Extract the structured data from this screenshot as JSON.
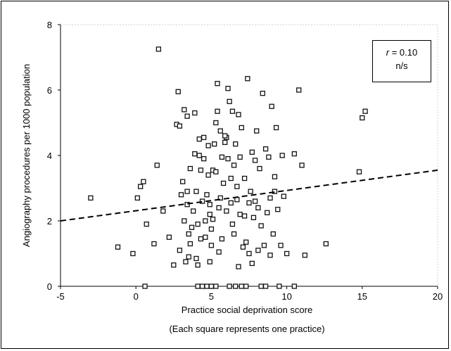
{
  "chart_data": {
    "type": "scatter",
    "xlabel": "Practice social deprivation score",
    "xlabel_note": "(Each square represents one practice)",
    "ylabel": "Angiography procedures per 1000 population",
    "xlim": [
      -5,
      20
    ],
    "ylim": [
      0,
      8
    ],
    "xticks": [
      "-5",
      "0",
      "5",
      "10",
      "15",
      "20"
    ],
    "yticks": [
      "0",
      "2",
      "4",
      "6",
      "8"
    ],
    "grid": false,
    "annotation": {
      "r_label": "r",
      "r_value": "= 0.10",
      "significance": "n/s"
    },
    "trend_line": {
      "style": "dashed",
      "x": [
        -5,
        20
      ],
      "y": [
        2.0,
        3.55
      ]
    },
    "points": [
      {
        "x": -3.0,
        "y": 2.7
      },
      {
        "x": -1.2,
        "y": 1.2
      },
      {
        "x": -0.2,
        "y": 1.0
      },
      {
        "x": 0.1,
        "y": 2.7
      },
      {
        "x": 0.3,
        "y": 3.05
      },
      {
        "x": 0.5,
        "y": 3.2
      },
      {
        "x": 0.7,
        "y": 1.9
      },
      {
        "x": 0.6,
        "y": 0.0
      },
      {
        "x": 1.2,
        "y": 1.3
      },
      {
        "x": 1.4,
        "y": 3.7
      },
      {
        "x": 1.8,
        "y": 2.3
      },
      {
        "x": 1.5,
        "y": 7.25
      },
      {
        "x": 2.2,
        "y": 1.5
      },
      {
        "x": 2.5,
        "y": 0.65
      },
      {
        "x": 2.7,
        "y": 4.95
      },
      {
        "x": 2.9,
        "y": 4.9
      },
      {
        "x": 2.8,
        "y": 5.95
      },
      {
        "x": 3.1,
        "y": 3.2
      },
      {
        "x": 3.0,
        "y": 2.8
      },
      {
        "x": 3.2,
        "y": 5.4
      },
      {
        "x": 3.2,
        "y": 2.0
      },
      {
        "x": 3.3,
        "y": 0.75
      },
      {
        "x": 3.4,
        "y": 2.9
      },
      {
        "x": 3.5,
        "y": 1.6
      },
      {
        "x": 3.5,
        "y": 0.9
      },
      {
        "x": 3.4,
        "y": 2.5
      },
      {
        "x": 3.6,
        "y": 1.3
      },
      {
        "x": 3.7,
        "y": 1.8
      },
      {
        "x": 3.8,
        "y": 2.3
      },
      {
        "x": 3.9,
        "y": 4.05
      },
      {
        "x": 3.9,
        "y": 5.3
      },
      {
        "x": 4.0,
        "y": 2.9
      },
      {
        "x": 4.0,
        "y": 0.85
      },
      {
        "x": 4.1,
        "y": 1.9
      },
      {
        "x": 4.2,
        "y": 4.0
      },
      {
        "x": 4.2,
        "y": 4.5
      },
      {
        "x": 4.3,
        "y": 3.55
      },
      {
        "x": 4.3,
        "y": 1.45
      },
      {
        "x": 4.1,
        "y": 0.65
      },
      {
        "x": 4.4,
        "y": 2.6
      },
      {
        "x": 4.5,
        "y": 4.55
      },
      {
        "x": 4.5,
        "y": 3.9
      },
      {
        "x": 4.6,
        "y": 2.0
      },
      {
        "x": 4.6,
        "y": 1.5
      },
      {
        "x": 4.7,
        "y": 2.8
      },
      {
        "x": 4.8,
        "y": 4.3
      },
      {
        "x": 4.8,
        "y": 3.4
      },
      {
        "x": 4.9,
        "y": 2.2
      },
      {
        "x": 4.9,
        "y": 0.75
      },
      {
        "x": 5.0,
        "y": 1.75
      },
      {
        "x": 5.0,
        "y": 1.25
      },
      {
        "x": 5.1,
        "y": 2.05
      },
      {
        "x": 5.1,
        "y": 3.55
      },
      {
        "x": 5.2,
        "y": 4.35
      },
      {
        "x": 5.3,
        "y": 3.5
      },
      {
        "x": 5.3,
        "y": 5.0
      },
      {
        "x": 5.4,
        "y": 5.35
      },
      {
        "x": 5.4,
        "y": 6.2
      },
      {
        "x": 5.5,
        "y": 2.4
      },
      {
        "x": 5.5,
        "y": 1.05
      },
      {
        "x": 5.6,
        "y": 4.75
      },
      {
        "x": 5.7,
        "y": 1.45
      },
      {
        "x": 5.7,
        "y": 3.95
      },
      {
        "x": 5.8,
        "y": 3.15
      },
      {
        "x": 5.9,
        "y": 4.4
      },
      {
        "x": 6.0,
        "y": 4.55
      },
      {
        "x": 6.0,
        "y": 2.3
      },
      {
        "x": 6.1,
        "y": 3.9
      },
      {
        "x": 6.1,
        "y": 6.05
      },
      {
        "x": 6.2,
        "y": 5.65
      },
      {
        "x": 6.3,
        "y": 2.55
      },
      {
        "x": 6.3,
        "y": 3.3
      },
      {
        "x": 6.4,
        "y": 1.9
      },
      {
        "x": 6.4,
        "y": 5.35
      },
      {
        "x": 6.5,
        "y": 3.7
      },
      {
        "x": 6.5,
        "y": 1.6
      },
      {
        "x": 6.6,
        "y": 4.35
      },
      {
        "x": 6.7,
        "y": 2.65
      },
      {
        "x": 6.8,
        "y": 5.25
      },
      {
        "x": 6.8,
        "y": 0.6
      },
      {
        "x": 6.9,
        "y": 3.95
      },
      {
        "x": 7.0,
        "y": 4.85
      },
      {
        "x": 7.1,
        "y": 1.2
      },
      {
        "x": 7.2,
        "y": 2.15
      },
      {
        "x": 7.2,
        "y": 3.3
      },
      {
        "x": 7.3,
        "y": 1.35
      },
      {
        "x": 7.4,
        "y": 6.35
      },
      {
        "x": 7.5,
        "y": 2.55
      },
      {
        "x": 7.5,
        "y": 1.0
      },
      {
        "x": 7.6,
        "y": 2.9
      },
      {
        "x": 7.7,
        "y": 0.7
      },
      {
        "x": 7.8,
        "y": 2.1
      },
      {
        "x": 7.9,
        "y": 3.85
      },
      {
        "x": 8.0,
        "y": 4.75
      },
      {
        "x": 8.1,
        "y": 2.4
      },
      {
        "x": 8.2,
        "y": 3.6
      },
      {
        "x": 8.3,
        "y": 1.85
      },
      {
        "x": 8.4,
        "y": 5.9
      },
      {
        "x": 8.5,
        "y": 1.25
      },
      {
        "x": 8.6,
        "y": 4.2
      },
      {
        "x": 8.7,
        "y": 2.25
      },
      {
        "x": 8.8,
        "y": 3.95
      },
      {
        "x": 8.9,
        "y": 2.7
      },
      {
        "x": 8.9,
        "y": 0.95
      },
      {
        "x": 9.0,
        "y": 5.5
      },
      {
        "x": 9.1,
        "y": 1.6
      },
      {
        "x": 9.2,
        "y": 3.35
      },
      {
        "x": 9.3,
        "y": 4.85
      },
      {
        "x": 9.4,
        "y": 2.35
      },
      {
        "x": 9.5,
        "y": 0.0
      },
      {
        "x": 9.6,
        "y": 1.25
      },
      {
        "x": 9.7,
        "y": 4.0
      },
      {
        "x": 9.8,
        "y": 2.75
      },
      {
        "x": 10.0,
        "y": 1.0
      },
      {
        "x": 10.5,
        "y": 4.05
      },
      {
        "x": 10.8,
        "y": 6.0
      },
      {
        "x": 11.0,
        "y": 3.7
      },
      {
        "x": 11.2,
        "y": 0.95
      },
      {
        "x": 12.6,
        "y": 1.3
      },
      {
        "x": 14.8,
        "y": 3.5
      },
      {
        "x": 15.0,
        "y": 5.15
      },
      {
        "x": 15.2,
        "y": 5.35
      },
      {
        "x": 4.1,
        "y": 0.0
      },
      {
        "x": 4.4,
        "y": 0.0
      },
      {
        "x": 4.7,
        "y": 0.0
      },
      {
        "x": 5.0,
        "y": 0.0
      },
      {
        "x": 5.3,
        "y": 0.0
      },
      {
        "x": 6.2,
        "y": 0.0
      },
      {
        "x": 6.6,
        "y": 0.0
      },
      {
        "x": 7.0,
        "y": 0.0
      },
      {
        "x": 7.3,
        "y": 0.0
      },
      {
        "x": 8.3,
        "y": 0.0
      },
      {
        "x": 8.6,
        "y": 0.0
      },
      {
        "x": 10.5,
        "y": 0.0
      },
      {
        "x": 2.9,
        "y": 1.1
      },
      {
        "x": 3.4,
        "y": 5.2
      },
      {
        "x": 5.6,
        "y": 2.7
      },
      {
        "x": 5.9,
        "y": 4.6
      },
      {
        "x": 6.9,
        "y": 2.2
      },
      {
        "x": 7.7,
        "y": 4.1
      },
      {
        "x": 8.1,
        "y": 1.1
      },
      {
        "x": 9.2,
        "y": 2.9
      },
      {
        "x": 3.6,
        "y": 3.6
      },
      {
        "x": 4.9,
        "y": 2.5
      },
      {
        "x": 6.7,
        "y": 3.05
      },
      {
        "x": 7.9,
        "y": 2.6
      }
    ]
  }
}
